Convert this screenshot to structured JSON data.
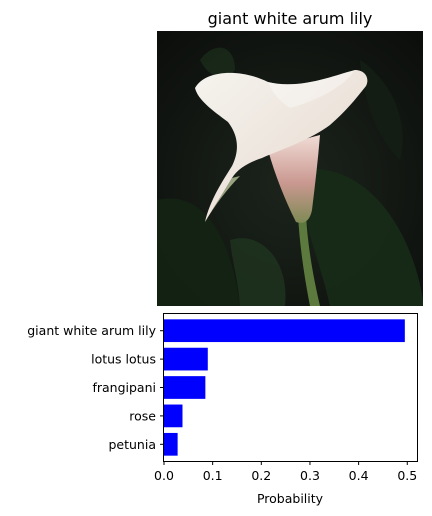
{
  "image_panel": {
    "title": "giant white arum lily",
    "subject_icon": "calla-lily-flower"
  },
  "chart_data": {
    "type": "bar",
    "orientation": "horizontal",
    "categories": [
      "giant white arum lily",
      "lotus lotus",
      "frangipani",
      "rose",
      "petunia"
    ],
    "values": [
      0.495,
      0.09,
      0.085,
      0.038,
      0.028
    ],
    "xlabel": "Probability",
    "ylabel": "",
    "xlim": [
      0,
      0.52
    ],
    "xticks": [
      0.0,
      0.1,
      0.2,
      0.3,
      0.4,
      0.5
    ],
    "xtick_labels": [
      "0.0",
      "0.1",
      "0.2",
      "0.3",
      "0.4",
      "0.5"
    ],
    "bar_color": "#0000ff",
    "grid": false,
    "legend": "none"
  }
}
